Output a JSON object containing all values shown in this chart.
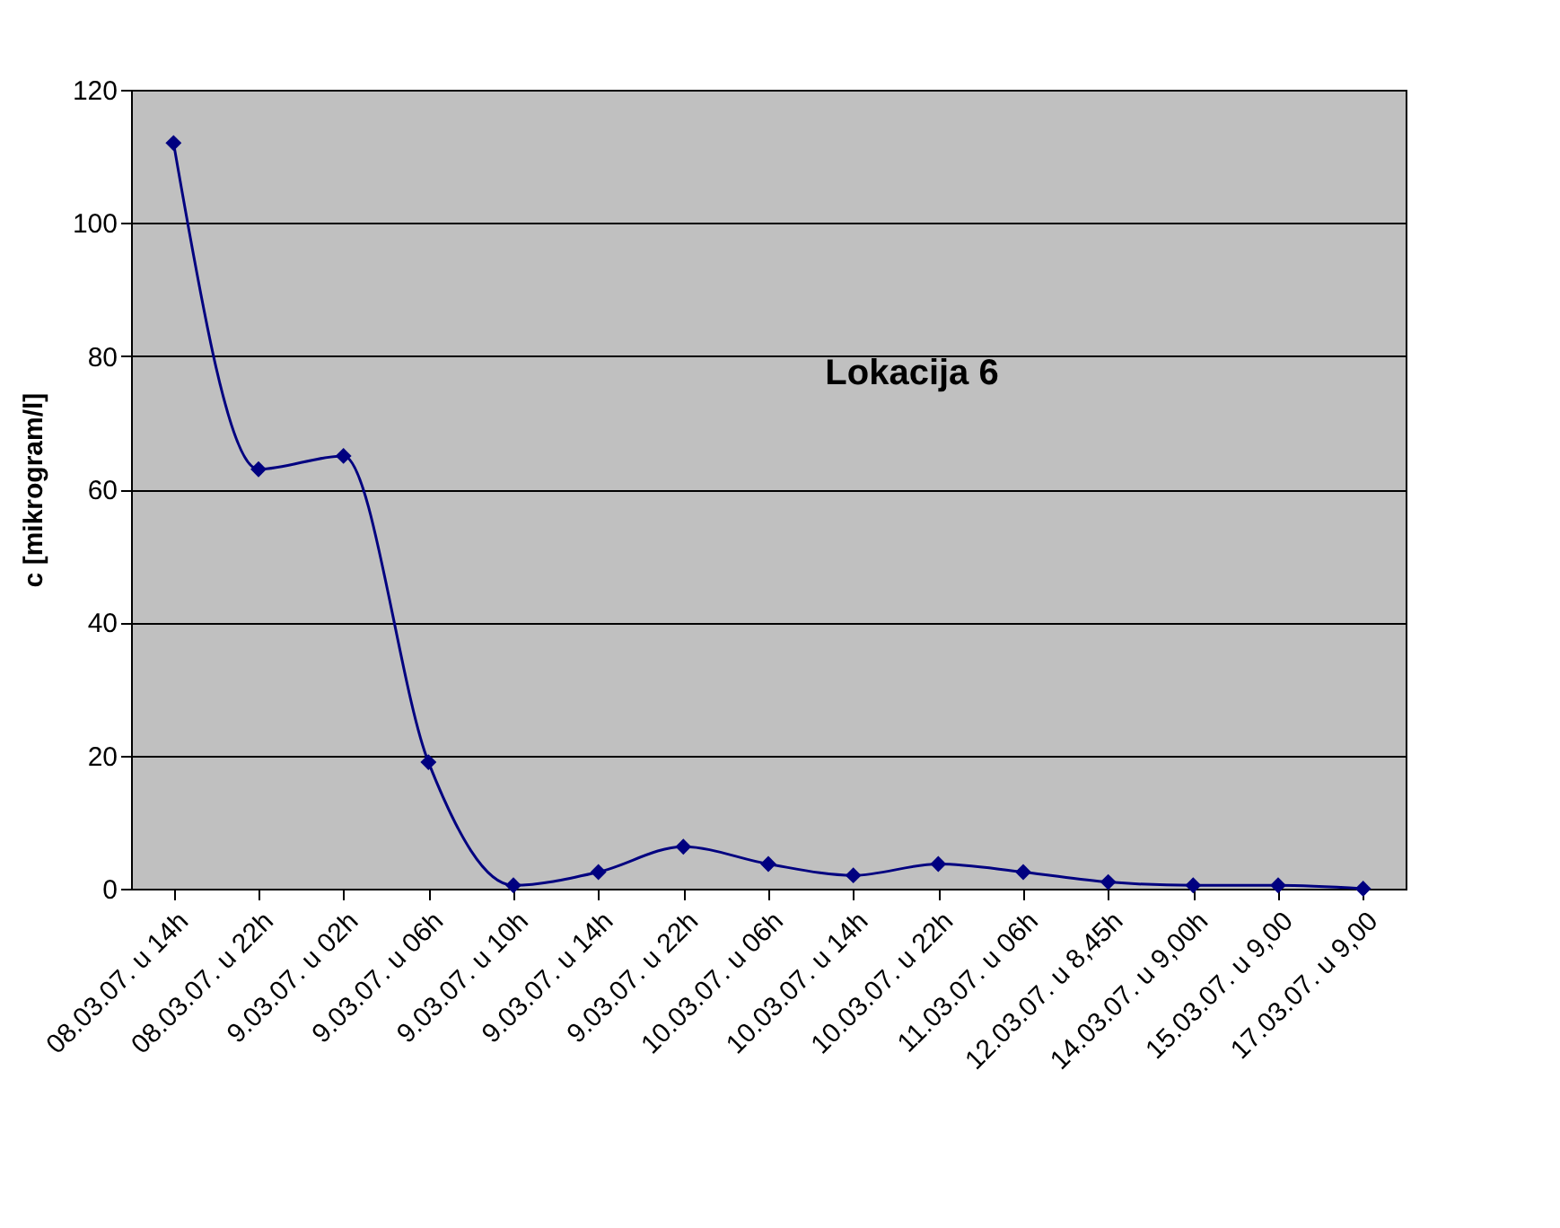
{
  "chart_data": {
    "type": "line",
    "title": "Lokacija 6",
    "ylabel": "c [mikrogram/l]",
    "categories": [
      "08.03.07. u 14h",
      "08.03.07. u 22h",
      "9.03.07. u 02h",
      "9.03.07. u 06h",
      "9.03.07. u 10h",
      "9.03.07. u 14h",
      "9.03.07. u 22h",
      "10.03.07. u 06h",
      "10.03.07. u 14h",
      "10.03.07. u 22h",
      "11.03.07. u 06h",
      "12.03.07. u 8,45h",
      "14.03.07. u 9,00h",
      "15.03.07. u 9,00",
      "17.03.07. u 9,00"
    ],
    "series": [
      {
        "color": "#000080",
        "values": [
          112,
          63,
          65,
          19,
          0.5,
          2.5,
          6.3,
          3.7,
          2,
          3.7,
          2.5,
          1,
          0.5,
          0.5,
          0
        ]
      }
    ],
    "ylim": [
      0,
      120
    ],
    "yticks": [
      0,
      20,
      40,
      60,
      80,
      100,
      120
    ],
    "grid": "y",
    "marker": "diamond",
    "legend": false
  }
}
